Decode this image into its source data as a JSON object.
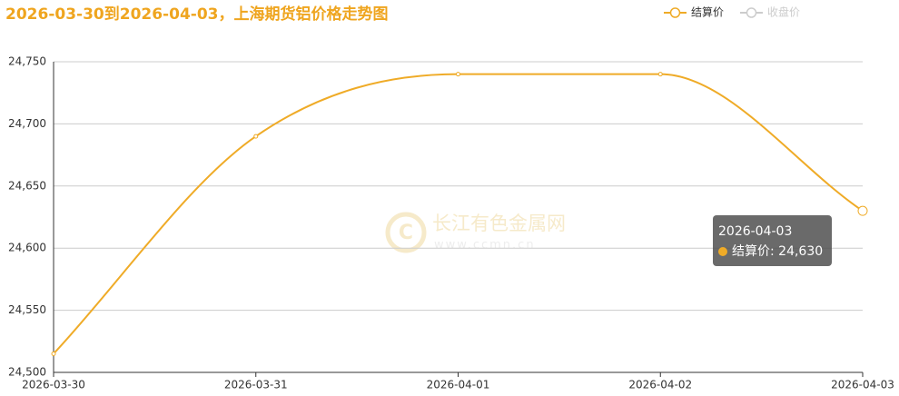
{
  "chart_data": {
    "type": "line",
    "title": "2026-03-30到2026-04-03，上海期货铝价格走势图",
    "categories": [
      "2026-03-30",
      "2026-03-31",
      "2026-04-01",
      "2026-04-02",
      "2026-04-03"
    ],
    "series": [
      {
        "name": "结算价",
        "color": "#efab27",
        "values": [
          24515,
          24690,
          24740,
          24740,
          24630
        ]
      },
      {
        "name": "收盘价",
        "color": "#cccccc",
        "values": [
          null,
          null,
          null,
          null,
          null
        ]
      }
    ],
    "ylim": [
      24500,
      24750
    ],
    "yticks": [
      {
        "value": 24500,
        "label": "24,500"
      },
      {
        "value": 24550,
        "label": "24,550"
      },
      {
        "value": 24600,
        "label": "24,600"
      },
      {
        "value": 24650,
        "label": "24,650"
      },
      {
        "value": 24700,
        "label": "24,700"
      },
      {
        "value": 24750,
        "label": "24,750"
      }
    ],
    "grid": true,
    "tooltip": {
      "title": "2026-04-03",
      "label": "结算价: 24,630"
    },
    "watermark": {
      "name": "长江有色金属网",
      "url": "www.ccmn.cn"
    }
  }
}
